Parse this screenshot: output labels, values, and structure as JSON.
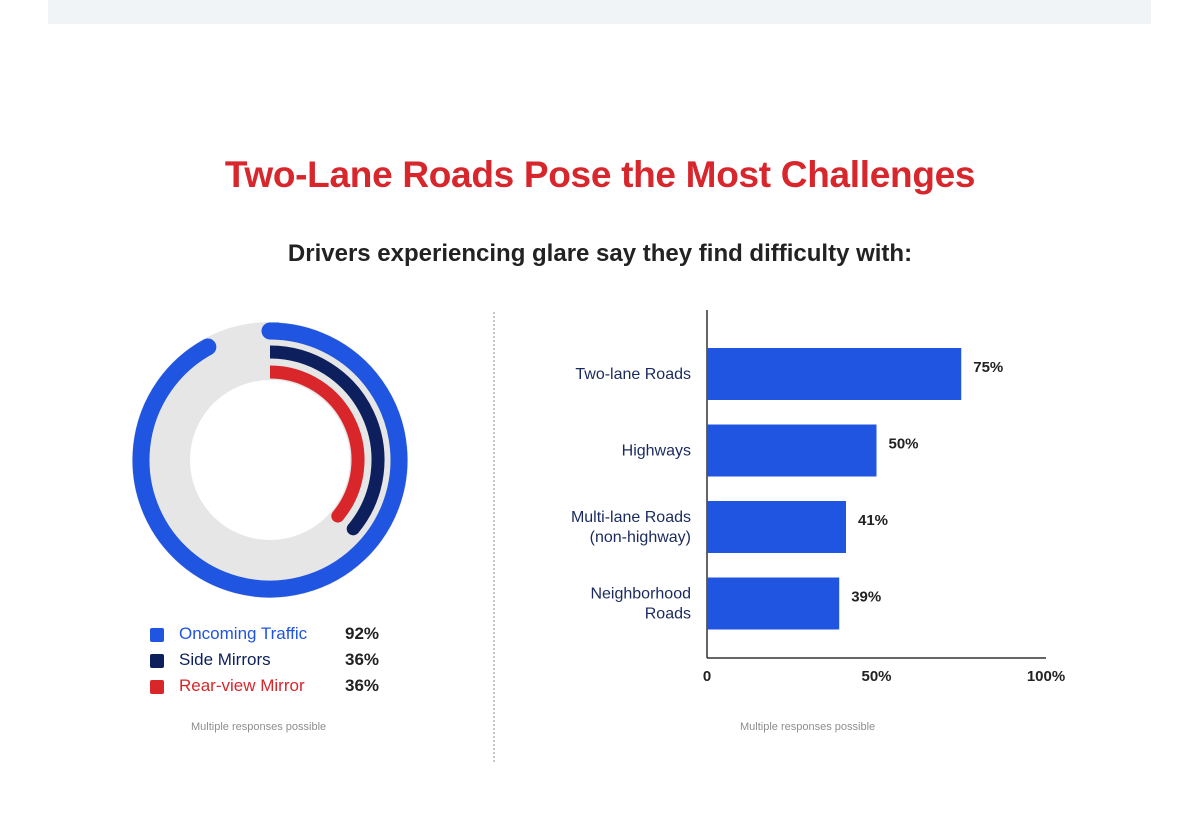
{
  "title": "Two-Lane Roads Pose the Most Challenges",
  "subtitle": "Drivers experiencing glare say they find difficulty with:",
  "colors": {
    "title": "#d7262c",
    "oncoming": "#1f55e0",
    "side_mirrors": "#0d1f5c",
    "rear_view": "#d8262b",
    "track": "#e6e6e6",
    "bar": "#1f55e0"
  },
  "chart_data": [
    {
      "type": "pie",
      "subtype": "radial-donut",
      "series": [
        {
          "name": "Oncoming Traffic",
          "value": 92,
          "value_label": "92%",
          "color": "#1f55e0"
        },
        {
          "name": "Side Mirrors",
          "value": 36,
          "value_label": "36%",
          "color": "#0d1f5c"
        },
        {
          "name": "Rear-view Mirror",
          "value": 36,
          "value_label": "36%",
          "color": "#d8262b"
        }
      ],
      "footnote": "Multiple responses possible"
    },
    {
      "type": "bar",
      "orientation": "horizontal",
      "categories": [
        "Two-lane Roads",
        "Highways",
        "Multi-lane Roads (non-highway)",
        "Neighborhood Roads"
      ],
      "category_lines": [
        [
          "Two-lane Roads"
        ],
        [
          "Highways"
        ],
        [
          "Multi-lane Roads",
          "(non-highway)"
        ],
        [
          "Neighborhood",
          "Roads"
        ]
      ],
      "values": [
        75,
        50,
        41,
        39
      ],
      "value_labels": [
        "75%",
        "50%",
        "41%",
        "39%"
      ],
      "xlim": [
        0,
        100
      ],
      "x_ticks": [
        0,
        50,
        100
      ],
      "x_tick_labels": [
        "0",
        "50%",
        "100%"
      ],
      "footnote": "Multiple responses possible"
    }
  ]
}
